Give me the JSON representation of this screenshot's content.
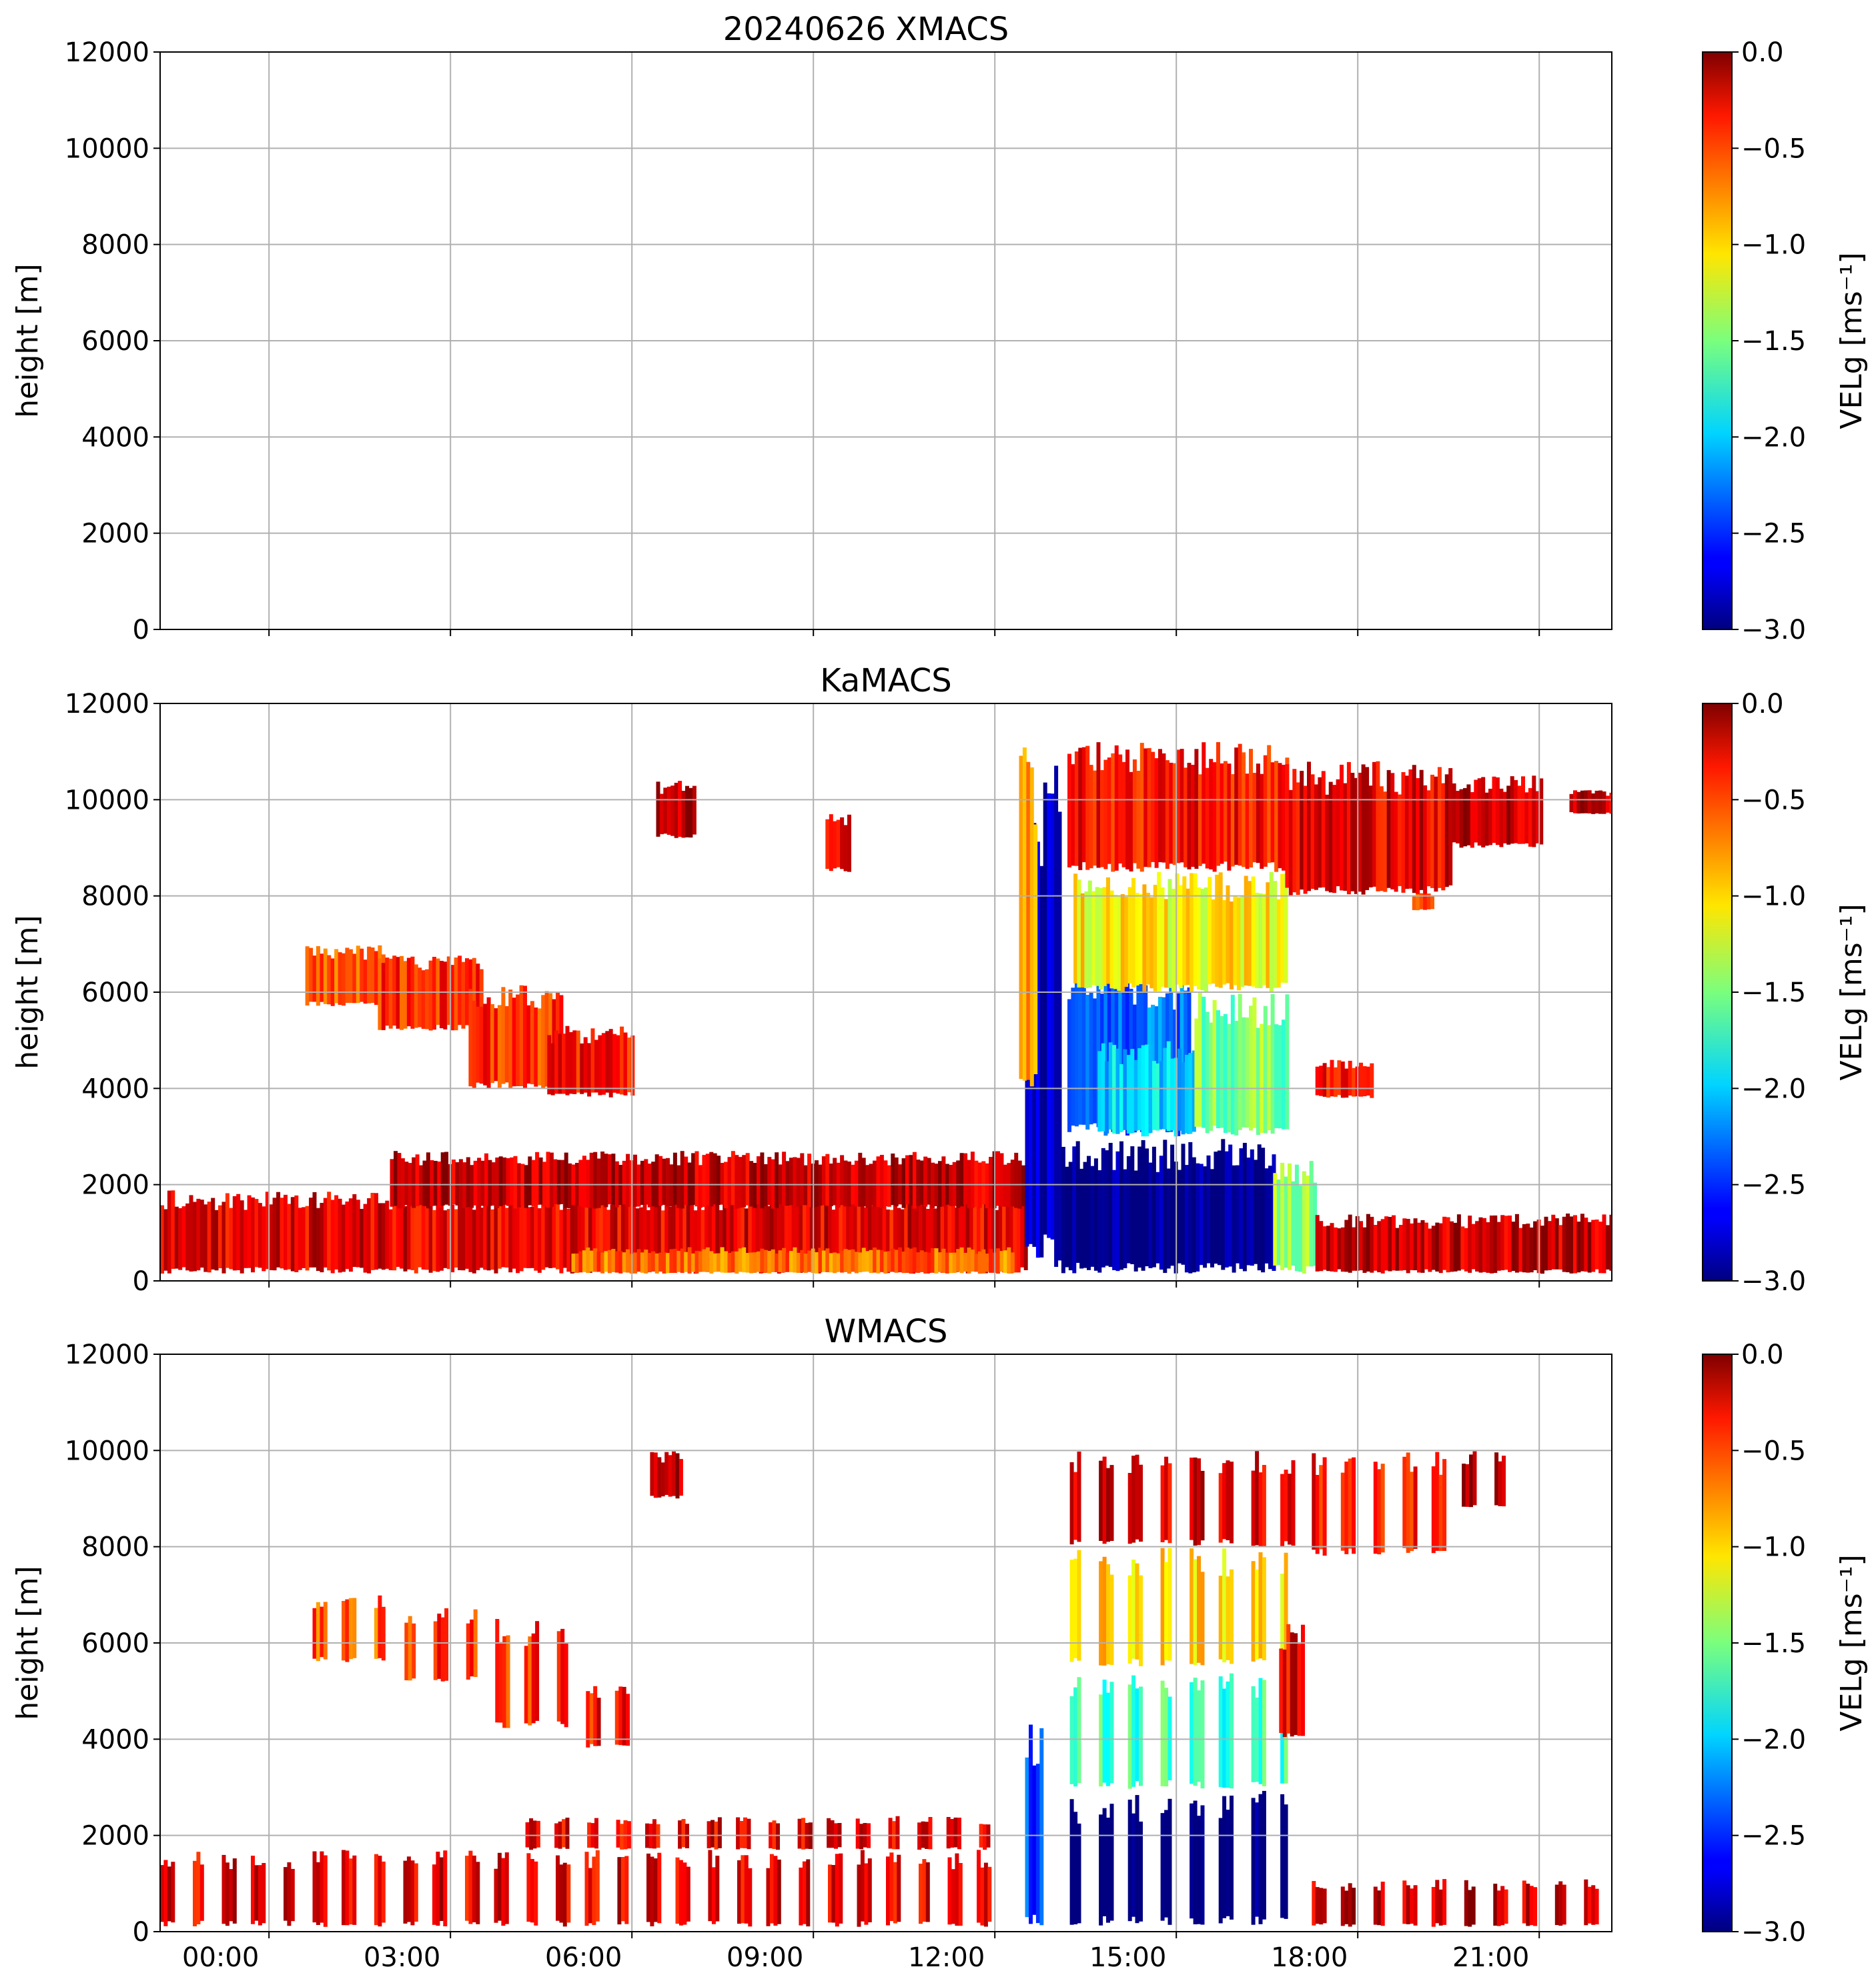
{
  "figure_title_prefix": "20240626",
  "chart_data": [
    {
      "type": "heatmap",
      "title": "XMACS",
      "ylabel": "height [m]",
      "ylim": [
        0,
        12000
      ],
      "yticks": [
        "0",
        "2000",
        "4000",
        "6000",
        "8000",
        "10000",
        "12000"
      ],
      "xlim_hours": [
        -0.8,
        23.2
      ],
      "xtick_labels": [],
      "grid": true,
      "colorbar": {
        "label": "VELg [ms⁻¹]",
        "range": [
          -3.0,
          0.0
        ],
        "ticks": [
          "0.0",
          "−0.5",
          "−1.0",
          "−1.5",
          "−2.0",
          "−2.5",
          "−3.0"
        ],
        "colormap": "jet"
      },
      "blobs": []
    },
    {
      "type": "heatmap",
      "title": "KaMACS",
      "ylabel": "height [m]",
      "ylim": [
        0,
        12000
      ],
      "yticks": [
        "0",
        "2000",
        "4000",
        "6000",
        "8000",
        "10000",
        "12000"
      ],
      "xlim_hours": [
        -0.8,
        23.2
      ],
      "xtick_labels": [],
      "grid": true,
      "colorbar": {
        "label": "VELg [ms⁻¹]",
        "range": [
          -3.0,
          0.0
        ],
        "ticks": [
          "0.0",
          "−0.5",
          "−1.0",
          "−1.5",
          "−2.0",
          "−2.5",
          "−3.0"
        ],
        "colormap": "jet"
      },
      "blobs": [
        {
          "t": [
            -0.8,
            13.5
          ],
          "h": [
            150,
            1900
          ],
          "v": -0.3
        },
        {
          "t": [
            3.0,
            13.5
          ],
          "h": [
            1500,
            2700
          ],
          "v": -0.2
        },
        {
          "t": [
            6.0,
            13.3
          ],
          "h": [
            150,
            700
          ],
          "v": -0.7
        },
        {
          "t": [
            13.5,
            14.1
          ],
          "h": [
            150,
            11000
          ],
          "v": -2.8
        },
        {
          "t": [
            13.4,
            13.7
          ],
          "h": [
            4000,
            11200
          ],
          "v": -0.8
        },
        {
          "t": [
            14.1,
            17.6
          ],
          "h": [
            150,
            2950
          ],
          "v": -3.0
        },
        {
          "t": [
            17.6,
            18.3
          ],
          "h": [
            150,
            2500
          ],
          "v": -1.4
        },
        {
          "t": [
            14.2,
            16.2
          ],
          "h": [
            3000,
            6500
          ],
          "v": -2.3
        },
        {
          "t": [
            14.7,
            16.3
          ],
          "h": [
            3000,
            5000
          ],
          "v": -2.0
        },
        {
          "t": [
            16.3,
            17.8
          ],
          "h": [
            3000,
            6000
          ],
          "v": -1.5
        },
        {
          "t": [
            14.3,
            17.8
          ],
          "h": [
            6000,
            8500
          ],
          "v": -1.1
        },
        {
          "t": [
            14.2,
            17.8
          ],
          "h": [
            8500,
            11200
          ],
          "v": -0.4
        },
        {
          "t": [
            17.8,
            20.5
          ],
          "h": [
            8000,
            10800
          ],
          "v": -0.3
        },
        {
          "t": [
            20.5,
            22.0
          ],
          "h": [
            9000,
            10500
          ],
          "v": -0.2
        },
        {
          "t": [
            22.5,
            23.2
          ],
          "h": [
            9700,
            10200
          ],
          "v": -0.2
        },
        {
          "t": [
            18.3,
            23.2
          ],
          "h": [
            150,
            1400
          ],
          "v": -0.2
        },
        {
          "t": [
            1.6,
            3.0
          ],
          "h": [
            5700,
            7000
          ],
          "v": -0.6
        },
        {
          "t": [
            2.8,
            4.5
          ],
          "h": [
            5200,
            6800
          ],
          "v": -0.5
        },
        {
          "t": [
            4.3,
            5.8
          ],
          "h": [
            4000,
            6200
          ],
          "v": -0.5
        },
        {
          "t": [
            5.6,
            7.0
          ],
          "h": [
            3800,
            5300
          ],
          "v": -0.4
        },
        {
          "t": [
            7.4,
            8.0
          ],
          "h": [
            9200,
            10400
          ],
          "v": -0.2
        },
        {
          "t": [
            10.2,
            10.6
          ],
          "h": [
            8500,
            9700
          ],
          "v": -0.3
        },
        {
          "t": [
            18.3,
            19.2
          ],
          "h": [
            3800,
            4600
          ],
          "v": -0.4
        },
        {
          "t": [
            19.9,
            20.2
          ],
          "h": [
            7700,
            8100
          ],
          "v": -0.5
        }
      ]
    },
    {
      "type": "heatmap",
      "title": "WMACS",
      "ylabel": "height [m]",
      "ylim": [
        0,
        12000
      ],
      "yticks": [
        "0",
        "2000",
        "4000",
        "6000",
        "8000",
        "10000",
        "12000"
      ],
      "xlim_hours": [
        -0.8,
        23.2
      ],
      "xtick_labels": [
        "00:00",
        "03:00",
        "06:00",
        "09:00",
        "12:00",
        "15:00",
        "18:00",
        "21:00"
      ],
      "grid": true,
      "colorbar": {
        "label": "VELg [ms⁻¹]",
        "range": [
          -3.0,
          0.0
        ],
        "ticks": [
          "0.0",
          "−0.5",
          "−1.0",
          "−1.5",
          "−2.0",
          "−2.5",
          "−3.0"
        ],
        "colormap": "jet"
      },
      "stripes": {
        "start": -0.8,
        "period": 0.5,
        "width": 0.22,
        "count": 48
      },
      "blobs": [
        {
          "t": [
            -0.8,
            13.2
          ],
          "h": [
            100,
            1700
          ],
          "v": -0.3,
          "striped": true
        },
        {
          "t": [
            5.0,
            13.0
          ],
          "h": [
            1700,
            2400
          ],
          "v": -0.3,
          "striped": true
        },
        {
          "t": [
            13.5,
            13.8
          ],
          "h": [
            100,
            4500
          ],
          "v": -2.4
        },
        {
          "t": [
            14.0,
            17.8
          ],
          "h": [
            100,
            2950
          ],
          "v": -3.0,
          "striped": true
        },
        {
          "t": [
            14.0,
            17.8
          ],
          "h": [
            2950,
            5500
          ],
          "v": -1.7,
          "striped": true
        },
        {
          "t": [
            14.0,
            17.8
          ],
          "h": [
            5500,
            8000
          ],
          "v": -1.0,
          "striped": true
        },
        {
          "t": [
            14.0,
            18.0
          ],
          "h": [
            8000,
            10000
          ],
          "v": -0.3,
          "striped": true
        },
        {
          "t": [
            18.0,
            20.6
          ],
          "h": [
            7800,
            10000
          ],
          "v": -0.4,
          "striped": true
        },
        {
          "t": [
            20.6,
            21.7
          ],
          "h": [
            8800,
            10000
          ],
          "v": -0.2,
          "striped": true
        },
        {
          "t": [
            18.0,
            23.2
          ],
          "h": [
            100,
            1100
          ],
          "v": -0.2,
          "striped": true
        },
        {
          "t": [
            1.6,
            3.0
          ],
          "h": [
            5600,
            7000
          ],
          "v": -0.6,
          "striped": true
        },
        {
          "t": [
            3.0,
            4.5
          ],
          "h": [
            5200,
            6800
          ],
          "v": -0.5,
          "striped": true
        },
        {
          "t": [
            4.5,
            6.0
          ],
          "h": [
            4200,
            6500
          ],
          "v": -0.5,
          "striped": true
        },
        {
          "t": [
            6.0,
            7.0
          ],
          "h": [
            3800,
            5200
          ],
          "v": -0.4,
          "striped": true
        },
        {
          "t": [
            7.3,
            7.8
          ],
          "h": [
            9000,
            10000
          ],
          "v": -0.2
        },
        {
          "t": [
            17.7,
            18.1
          ],
          "h": [
            4000,
            6400
          ],
          "v": -0.3
        }
      ]
    }
  ]
}
